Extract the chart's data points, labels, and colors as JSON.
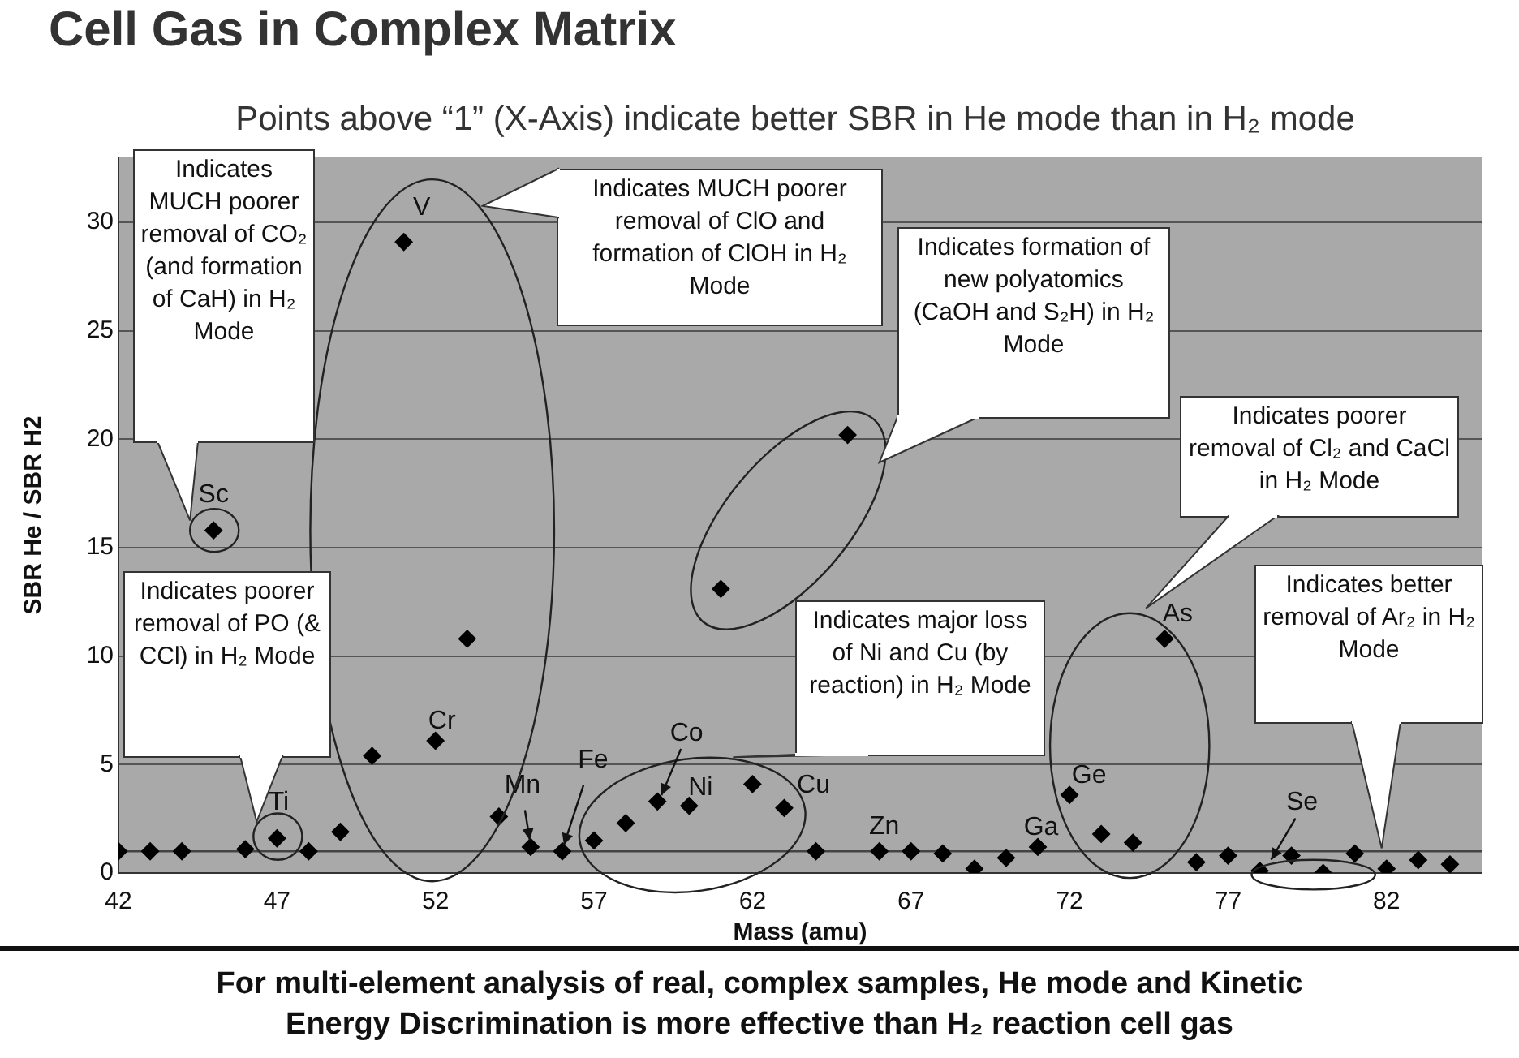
{
  "chart_data": {
    "type": "scatter",
    "title": "Cell Gas in Complex Matrix",
    "subtitle": "Points above “1” (X-Axis) indicate better SBR in He mode than in H₂ mode",
    "xlabel": "Mass (amu)",
    "ylabel": "SBR He / SBR H2",
    "x": [
      42,
      43,
      44,
      45,
      46,
      47,
      48,
      49,
      50,
      51,
      52,
      53,
      54,
      55,
      56,
      57,
      58,
      59,
      60,
      61,
      62,
      63,
      64,
      65,
      66,
      67,
      68,
      69,
      70,
      71,
      72,
      73,
      74,
      75,
      76,
      77,
      78,
      79,
      80,
      81,
      82,
      83,
      84
    ],
    "values": [
      1.0,
      1.0,
      1.0,
      15.8,
      1.1,
      1.6,
      1.0,
      1.9,
      5.4,
      29.1,
      6.1,
      10.8,
      2.6,
      1.2,
      1.0,
      1.5,
      2.3,
      3.3,
      3.1,
      13.1,
      4.1,
      3.0,
      1.0,
      20.2,
      1.0,
      1.0,
      0.9,
      0.2,
      0.7,
      1.2,
      3.6,
      1.8,
      1.4,
      10.8,
      0.5,
      0.8,
      0.1,
      0.8,
      0.0,
      0.9,
      0.2,
      0.6,
      0.4
    ],
    "color": "#000000",
    "marker": "diamond",
    "grid": "y",
    "legend": false,
    "xlim": [
      42,
      85
    ],
    "xticks": [
      42,
      47,
      52,
      57,
      62,
      67,
      72,
      77,
      82
    ],
    "ylim": [
      0,
      33
    ],
    "yticks": [
      0,
      5,
      10,
      15,
      20,
      25,
      30
    ],
    "ref_lines": [
      {
        "axis": "y",
        "value": 1,
        "color": "#444444"
      }
    ],
    "annotations": [
      {
        "text": "Sc",
        "x": 45,
        "y": 15.8
      },
      {
        "text": "Ti",
        "x": 47,
        "y": 1.6
      },
      {
        "text": "V",
        "x": 51,
        "y": 29.1
      },
      {
        "text": "Cr",
        "x": 52,
        "y": 6.1
      },
      {
        "text": "Mn",
        "x": 55,
        "y": 1.2
      },
      {
        "text": "Fe",
        "x": 56,
        "y": 1.0
      },
      {
        "text": "Co",
        "x": 59,
        "y": 3.3
      },
      {
        "text": "Ni",
        "x": 60,
        "y": 3.1
      },
      {
        "text": "Cu",
        "x": 63,
        "y": 3.0
      },
      {
        "text": "Zn",
        "x": 66,
        "y": 1.0
      },
      {
        "text": "Ga",
        "x": 71,
        "y": 1.2
      },
      {
        "text": "Ge",
        "x": 72,
        "y": 3.6
      },
      {
        "text": "As",
        "x": 75,
        "y": 10.8
      },
      {
        "text": "Se",
        "x": 78,
        "y": 0.1
      },
      "Indicates MUCH poorer removal of CO₂ (and formation of CaH) in H₂ Mode",
      "Indicates poorer removal of PO (& CCl) in H₂ Mode",
      "Indicates MUCH poorer removal of ClO and formation of ClOH in H₂ Mode",
      "Indicates formation of new polyatomics (CaOH and S₂H) in H₂ Mode",
      "Indicates major loss of Ni and Cu (by reaction) in H₂ Mode",
      "Indicates poorer removal of Cl₂ and CaCl in H₂ Mode",
      "Indicates better removal of Ar₂ in H₂ Mode",
      "For multi-element analysis of real, complex samples, He mode and Kinetic Energy Discrimination is more effective than H₂ reaction cell gas"
    ]
  }
}
